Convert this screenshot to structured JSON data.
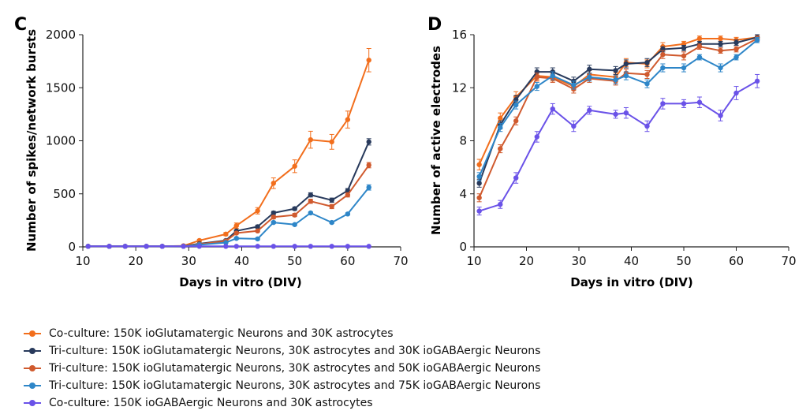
{
  "series_legend": [
    {
      "label": "Co-culture: 150K ioGlutamatergic Neurons and 30K astrocytes",
      "color": "#F26E1C"
    },
    {
      "label": "Tri-culture: 150K ioGlutamatergic Neurons, 30K astrocytes and 30K ioGABAergic Neurons",
      "color": "#283A5C"
    },
    {
      "label": "Tri-culture: 150K ioGlutamatergic Neurons, 30K astrocytes and 50K ioGABAergic Neurons",
      "color": "#D05A2E"
    },
    {
      "label": "Tri-culture: 150K ioGlutamatergic Neurons, 30K astrocytes and 75K ioGABAergic Neurons",
      "color": "#2E86C8"
    },
    {
      "label": "Co-culture: 150K ioGABAergic Neurons and 30K astrocytes",
      "color": "#6A52E8"
    }
  ],
  "chart_data": [
    {
      "panel_label": "C",
      "type": "line",
      "xlabel": "Days in vitro (DIV)",
      "ylabel": "Number of spikes/network bursts",
      "xlim": [
        10,
        70
      ],
      "ylim": [
        0,
        2000
      ],
      "xticks": [
        10,
        20,
        30,
        40,
        50,
        60,
        70
      ],
      "yticks": [
        0,
        500,
        1000,
        1500,
        2000
      ],
      "grid": false,
      "x": [
        11,
        15,
        18,
        22,
        25,
        29,
        32,
        37,
        39,
        43,
        46,
        50,
        53,
        57,
        60,
        64
      ],
      "series": [
        {
          "color": "#F26E1C",
          "values": [
            5,
            5,
            5,
            5,
            5,
            10,
            60,
            120,
            200,
            340,
            600,
            760,
            1010,
            990,
            1200,
            1760
          ],
          "errors": [
            0,
            0,
            0,
            0,
            0,
            5,
            10,
            15,
            25,
            30,
            50,
            60,
            80,
            70,
            80,
            110
          ]
        },
        {
          "color": "#283A5C",
          "values": [
            5,
            5,
            5,
            5,
            5,
            8,
            30,
            60,
            150,
            190,
            320,
            360,
            490,
            440,
            530,
            990
          ],
          "errors": [
            0,
            0,
            0,
            0,
            0,
            0,
            5,
            10,
            10,
            15,
            15,
            15,
            20,
            20,
            20,
            30
          ]
        },
        {
          "color": "#D05A2E",
          "values": [
            5,
            5,
            5,
            5,
            5,
            8,
            25,
            55,
            130,
            150,
            280,
            300,
            430,
            380,
            490,
            770
          ],
          "errors": [
            0,
            0,
            0,
            0,
            0,
            0,
            5,
            10,
            10,
            10,
            15,
            15,
            20,
            20,
            20,
            25
          ]
        },
        {
          "color": "#2E86C8",
          "values": [
            5,
            5,
            5,
            5,
            5,
            5,
            20,
            40,
            80,
            75,
            230,
            210,
            320,
            230,
            310,
            560
          ],
          "errors": [
            0,
            0,
            0,
            0,
            0,
            0,
            5,
            5,
            10,
            10,
            10,
            10,
            10,
            10,
            10,
            25
          ]
        },
        {
          "color": "#6A52E8",
          "values": [
            5,
            5,
            5,
            5,
            5,
            5,
            5,
            5,
            5,
            5,
            5,
            5,
            5,
            5,
            5,
            5
          ],
          "errors": [
            0,
            0,
            0,
            0,
            0,
            0,
            0,
            0,
            0,
            0,
            0,
            0,
            0,
            0,
            0,
            0
          ]
        }
      ]
    },
    {
      "panel_label": "D",
      "type": "line",
      "xlabel": "Days in vitro (DIV)",
      "ylabel": "Number of active electrodes",
      "xlim": [
        10,
        70
      ],
      "ylim": [
        0,
        16
      ],
      "xticks": [
        10,
        20,
        30,
        40,
        50,
        60,
        70
      ],
      "yticks": [
        0,
        4,
        8,
        12,
        16
      ],
      "grid": false,
      "x": [
        11,
        15,
        18,
        22,
        25,
        29,
        32,
        37,
        39,
        43,
        46,
        50,
        53,
        57,
        60,
        64
      ],
      "series": [
        {
          "color": "#F26E1C",
          "values": [
            6.2,
            9.7,
            11.3,
            12.9,
            12.8,
            12.1,
            13.0,
            12.8,
            13.9,
            13.8,
            15.1,
            15.3,
            15.7,
            15.7,
            15.6,
            15.8
          ],
          "errors": [
            0.4,
            0.4,
            0.4,
            0.3,
            0.3,
            0.3,
            0.3,
            0.3,
            0.3,
            0.3,
            0.3,
            0.2,
            0.2,
            0.2,
            0.2,
            0.2
          ]
        },
        {
          "color": "#283A5C",
          "values": [
            4.8,
            9.2,
            11.1,
            13.2,
            13.2,
            12.5,
            13.4,
            13.3,
            13.8,
            13.9,
            14.9,
            15.0,
            15.3,
            15.3,
            15.4,
            15.8
          ],
          "errors": [
            0.3,
            0.3,
            0.3,
            0.3,
            0.3,
            0.3,
            0.3,
            0.3,
            0.3,
            0.3,
            0.2,
            0.2,
            0.2,
            0.2,
            0.2,
            0.2
          ]
        },
        {
          "color": "#D05A2E",
          "values": [
            3.7,
            7.4,
            9.5,
            12.8,
            12.7,
            11.9,
            12.7,
            12.5,
            13.1,
            13.0,
            14.5,
            14.4,
            15.1,
            14.8,
            14.9,
            15.7
          ],
          "errors": [
            0.3,
            0.3,
            0.3,
            0.3,
            0.3,
            0.3,
            0.3,
            0.3,
            0.3,
            0.3,
            0.3,
            0.3,
            0.2,
            0.2,
            0.2,
            0.2
          ]
        },
        {
          "color": "#2E86C8",
          "values": [
            5.3,
            9.0,
            10.7,
            12.1,
            12.9,
            12.2,
            12.8,
            12.6,
            12.9,
            12.3,
            13.5,
            13.5,
            14.3,
            13.5,
            14.3,
            15.6
          ],
          "errors": [
            0.3,
            0.3,
            0.3,
            0.3,
            0.3,
            0.3,
            0.3,
            0.3,
            0.3,
            0.3,
            0.3,
            0.3,
            0.2,
            0.3,
            0.2,
            0.2
          ]
        },
        {
          "color": "#6A52E8",
          "values": [
            2.7,
            3.2,
            5.2,
            8.3,
            10.4,
            9.1,
            10.3,
            10.0,
            10.1,
            9.1,
            10.8,
            10.8,
            10.9,
            9.9,
            11.6,
            12.5
          ],
          "errors": [
            0.3,
            0.3,
            0.4,
            0.4,
            0.4,
            0.4,
            0.3,
            0.3,
            0.4,
            0.4,
            0.4,
            0.3,
            0.4,
            0.4,
            0.5,
            0.5
          ]
        }
      ]
    }
  ]
}
